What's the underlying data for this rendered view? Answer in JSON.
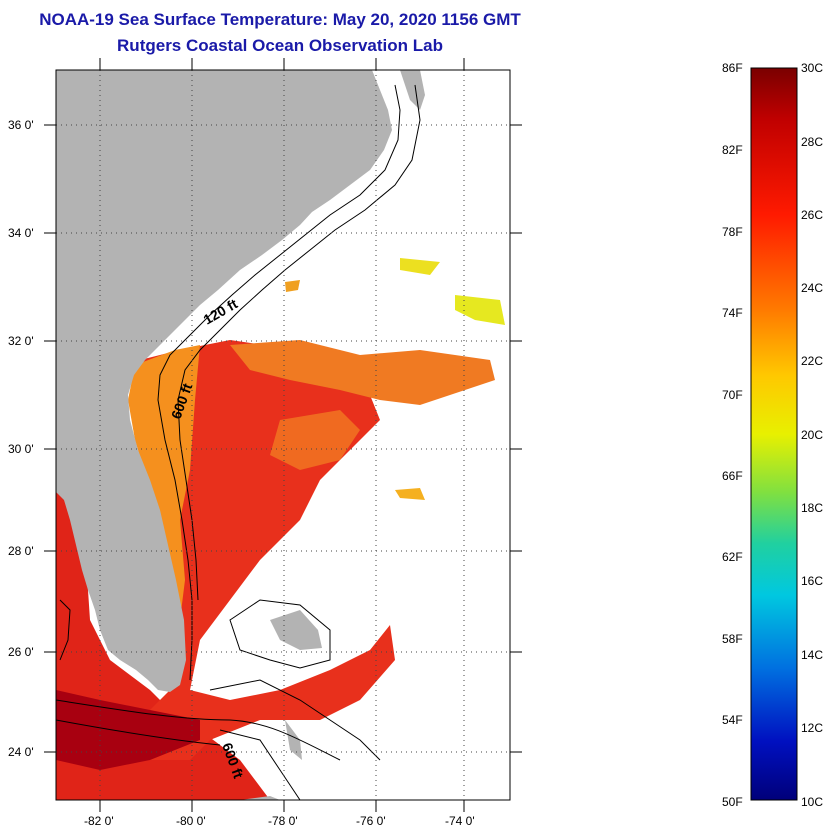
{
  "title": "NOAA-19 Sea Surface Temperature:  May 20, 2020 1156 GMT",
  "subtitle": "Rutgers Coastal Ocean Observation Lab",
  "map": {
    "lat_labels": [
      "36 0'",
      "34 0'",
      "32 0'",
      "30 0'",
      "28 0'",
      "26 0'",
      "24 0'"
    ],
    "lon_labels": [
      "-82 0'",
      "-80 0'",
      "-78 0'",
      "-76 0'",
      "-74 0'"
    ],
    "contour_labels": [
      "120 ft",
      "600 ft",
      "600 ft"
    ],
    "colors": {
      "land": "#b3b3b3",
      "water_warm": "#e8241c",
      "water_mid": "#f07a1e",
      "grid": "#555555"
    }
  },
  "colorbar": {
    "f_labels": [
      "86F",
      "82F",
      "78F",
      "74F",
      "70F",
      "66F",
      "62F",
      "58F",
      "54F",
      "50F"
    ],
    "c_labels": [
      "30C",
      "28C",
      "26C",
      "24C",
      "22C",
      "20C",
      "18C",
      "16C",
      "14C",
      "12C",
      "10C"
    ]
  }
}
